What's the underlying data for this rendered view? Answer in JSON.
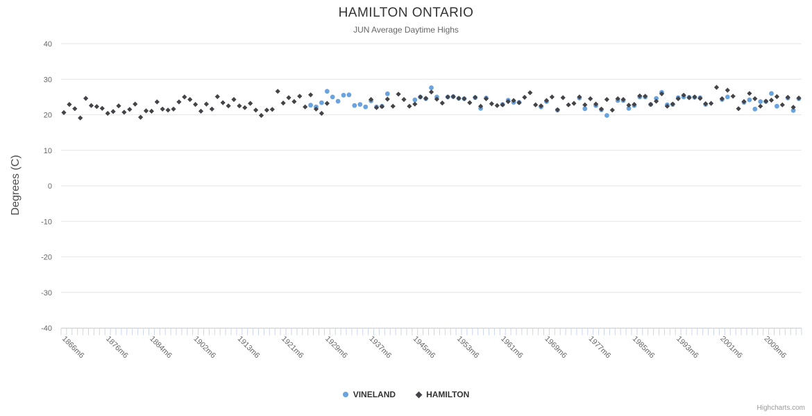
{
  "header": {
    "title": "HAMILTON ONTARIO",
    "subtitle": "JUN Average Daytime Highs"
  },
  "y_axis": {
    "title": "Degrees (C)"
  },
  "legend": {
    "items": [
      {
        "label": "VINELAND",
        "marker": "circle-icon",
        "color": "#6ba3dd"
      },
      {
        "label": "HAMILTON",
        "marker": "diamond-icon",
        "color": "#434348"
      }
    ]
  },
  "credits": {
    "label": "Highcharts.com"
  },
  "chart_data": {
    "type": "scatter",
    "title": "HAMILTON ONTARIO",
    "subtitle": "JUN Average Daytime Highs",
    "xlabel": "",
    "ylabel": "Degrees (C)",
    "ylim": [
      -40,
      40
    ],
    "ytick_step": 10,
    "grid": "horizontal",
    "legend_position": "bottom-center",
    "n_categories": 135,
    "x_tick_label_every": 8,
    "x_tick_labels": [
      "1866m6",
      "1876m6",
      "1884m6",
      "1902m6",
      "1913m6",
      "1921m6",
      "1929m6",
      "1937m6",
      "1945m6",
      "1953m6",
      "1961m6",
      "1969m6",
      "1977m6",
      "1985m6",
      "1993m6",
      "2001m6",
      "2009m6"
    ],
    "colors": {
      "grid": "#e6e6e6",
      "axis_line": "#ccd6eb",
      "tick": "#ccd6eb",
      "axis_label": "#666666"
    },
    "series": [
      {
        "name": "VINELAND",
        "marker": "circle",
        "color": "#6ba3dd",
        "points": [
          [
            45,
            22.7
          ],
          [
            46,
            22.2
          ],
          [
            47,
            23.4
          ],
          [
            48,
            26.6
          ],
          [
            49,
            25.0
          ],
          [
            50,
            23.8
          ],
          [
            51,
            25.5
          ],
          [
            52,
            25.6
          ],
          [
            53,
            22.6
          ],
          [
            54,
            22.9
          ],
          [
            55,
            22.2
          ],
          [
            56,
            23.9
          ],
          [
            57,
            22.2
          ],
          [
            58,
            22.4
          ],
          [
            59,
            25.9
          ],
          [
            64,
            24.2
          ],
          [
            65,
            25.0
          ],
          [
            66,
            24.5
          ],
          [
            67,
            27.6
          ],
          [
            68,
            25.0
          ],
          [
            70,
            25.0
          ],
          [
            71,
            25.1
          ],
          [
            72,
            24.6
          ],
          [
            73,
            24.5
          ],
          [
            75,
            24.8
          ],
          [
            76,
            21.8
          ],
          [
            77,
            24.7
          ],
          [
            80,
            22.9
          ],
          [
            81,
            24.1
          ],
          [
            82,
            23.5
          ],
          [
            83,
            23.5
          ],
          [
            87,
            22.2
          ],
          [
            88,
            23.7
          ],
          [
            90,
            21.3
          ],
          [
            94,
            24.7
          ],
          [
            95,
            21.7
          ],
          [
            97,
            22.6
          ],
          [
            98,
            21.4
          ],
          [
            99,
            19.8
          ],
          [
            101,
            24.0
          ],
          [
            102,
            24.0
          ],
          [
            103,
            21.8
          ],
          [
            104,
            22.6
          ],
          [
            105,
            25.0
          ],
          [
            106,
            25.0
          ],
          [
            107,
            22.9
          ],
          [
            108,
            24.6
          ],
          [
            109,
            26.3
          ],
          [
            110,
            22.8
          ],
          [
            111,
            22.9
          ],
          [
            112,
            24.8
          ],
          [
            113,
            25.0
          ],
          [
            114,
            24.9
          ],
          [
            115,
            24.9
          ],
          [
            116,
            24.8
          ],
          [
            117,
            22.9
          ],
          [
            120,
            24.3
          ],
          [
            121,
            25.0
          ],
          [
            124,
            23.5
          ],
          [
            125,
            24.2
          ],
          [
            126,
            21.6
          ],
          [
            127,
            23.7
          ],
          [
            128,
            23.7
          ],
          [
            129,
            26.0
          ],
          [
            130,
            22.4
          ],
          [
            132,
            24.7
          ],
          [
            133,
            21.2
          ],
          [
            134,
            24.5
          ]
        ]
      },
      {
        "name": "HAMILTON",
        "marker": "diamond",
        "color": "#434348",
        "points": [
          [
            0,
            20.6
          ],
          [
            1,
            22.9
          ],
          [
            2,
            21.7
          ],
          [
            3,
            19.1
          ],
          [
            4,
            24.6
          ],
          [
            5,
            22.6
          ],
          [
            6,
            22.3
          ],
          [
            7,
            21.8
          ],
          [
            8,
            20.4
          ],
          [
            9,
            20.9
          ],
          [
            10,
            22.5
          ],
          [
            11,
            20.7
          ],
          [
            12,
            21.5
          ],
          [
            13,
            23.0
          ],
          [
            14,
            19.3
          ],
          [
            15,
            21.1
          ],
          [
            16,
            21.0
          ],
          [
            17,
            23.6
          ],
          [
            18,
            21.6
          ],
          [
            19,
            21.3
          ],
          [
            20,
            21.6
          ],
          [
            21,
            23.6
          ],
          [
            22,
            25.0
          ],
          [
            23,
            24.3
          ],
          [
            24,
            22.9
          ],
          [
            25,
            21.0
          ],
          [
            26,
            23.0
          ],
          [
            27,
            21.6
          ],
          [
            28,
            25.1
          ],
          [
            29,
            23.4
          ],
          [
            30,
            22.5
          ],
          [
            31,
            24.3
          ],
          [
            32,
            22.5
          ],
          [
            33,
            22.0
          ],
          [
            34,
            23.2
          ],
          [
            35,
            21.3
          ],
          [
            36,
            19.8
          ],
          [
            37,
            21.3
          ],
          [
            38,
            21.5
          ],
          [
            39,
            26.6
          ],
          [
            40,
            23.3
          ],
          [
            41,
            24.8
          ],
          [
            42,
            23.7
          ],
          [
            43,
            25.2
          ],
          [
            44,
            22.2
          ],
          [
            45,
            25.6
          ],
          [
            46,
            21.6
          ],
          [
            47,
            20.4
          ],
          [
            48,
            23.2
          ],
          [
            56,
            24.3
          ],
          [
            57,
            22.0
          ],
          [
            58,
            22.3
          ],
          [
            59,
            24.4
          ],
          [
            60,
            22.4
          ],
          [
            61,
            25.8
          ],
          [
            62,
            24.3
          ],
          [
            63,
            22.4
          ],
          [
            64,
            23.0
          ],
          [
            65,
            25.0
          ],
          [
            66,
            24.6
          ],
          [
            67,
            26.4
          ],
          [
            68,
            24.4
          ],
          [
            69,
            23.3
          ],
          [
            70,
            25.0
          ],
          [
            71,
            25.1
          ],
          [
            72,
            24.6
          ],
          [
            73,
            24.5
          ],
          [
            74,
            23.4
          ],
          [
            75,
            24.9
          ],
          [
            76,
            22.4
          ],
          [
            77,
            24.5
          ],
          [
            78,
            23.1
          ],
          [
            79,
            22.6
          ],
          [
            80,
            22.8
          ],
          [
            81,
            23.7
          ],
          [
            82,
            24.0
          ],
          [
            83,
            23.4
          ],
          [
            84,
            24.9
          ],
          [
            85,
            26.2
          ],
          [
            86,
            22.8
          ],
          [
            87,
            22.5
          ],
          [
            88,
            24.0
          ],
          [
            89,
            25.0
          ],
          [
            90,
            21.4
          ],
          [
            91,
            24.8
          ],
          [
            92,
            22.8
          ],
          [
            93,
            23.2
          ],
          [
            94,
            25.0
          ],
          [
            95,
            22.8
          ],
          [
            96,
            24.5
          ],
          [
            97,
            23.0
          ],
          [
            98,
            21.6
          ],
          [
            99,
            24.3
          ],
          [
            100,
            21.3
          ],
          [
            101,
            24.5
          ],
          [
            102,
            24.3
          ],
          [
            103,
            22.7
          ],
          [
            104,
            22.9
          ],
          [
            105,
            25.3
          ],
          [
            106,
            25.2
          ],
          [
            107,
            22.9
          ],
          [
            108,
            23.8
          ],
          [
            109,
            25.9
          ],
          [
            110,
            22.4
          ],
          [
            111,
            23.0
          ],
          [
            112,
            24.5
          ],
          [
            113,
            25.5
          ],
          [
            114,
            24.8
          ],
          [
            115,
            25.0
          ],
          [
            116,
            24.6
          ],
          [
            117,
            23.1
          ],
          [
            118,
            23.2
          ],
          [
            119,
            27.7
          ],
          [
            120,
            24.5
          ],
          [
            121,
            26.9
          ],
          [
            122,
            25.2
          ],
          [
            123,
            21.7
          ],
          [
            124,
            23.7
          ],
          [
            125,
            26.0
          ],
          [
            126,
            24.5
          ],
          [
            127,
            22.4
          ],
          [
            128,
            23.8
          ],
          [
            129,
            24.1
          ],
          [
            130,
            25.1
          ],
          [
            131,
            22.8
          ],
          [
            132,
            24.9
          ],
          [
            133,
            22.1
          ],
          [
            134,
            24.7
          ]
        ]
      }
    ]
  }
}
